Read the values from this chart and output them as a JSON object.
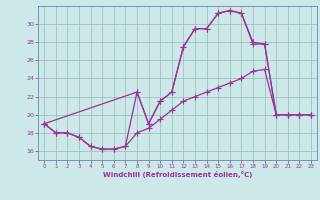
{
  "xlabel": "Windchill (Refroidissement éolien,°C)",
  "bg_color": "#cce8e8",
  "line_color": "#993399",
  "grid_color": "#99bbbb",
  "xmin": -0.5,
  "xmax": 23.5,
  "ymin": 15.0,
  "ymax": 32.0,
  "yticks": [
    16,
    18,
    20,
    22,
    24,
    26,
    28,
    30
  ],
  "line1_x": [
    0,
    1,
    2,
    3,
    4,
    5,
    6,
    7,
    8,
    9,
    10,
    11,
    12,
    13,
    14,
    15,
    16,
    17,
    18,
    19,
    20,
    21,
    22,
    23
  ],
  "line1_y": [
    19,
    18,
    18,
    17.5,
    16.5,
    16.2,
    16.2,
    16.5,
    18.0,
    18.5,
    19.5,
    20.5,
    21.5,
    22.0,
    22.5,
    23.0,
    23.5,
    24.0,
    24.8,
    25.0,
    20.0,
    20.0,
    20.0,
    20.0
  ],
  "line2_x": [
    0,
    1,
    2,
    3,
    4,
    5,
    6,
    7,
    8,
    9,
    10,
    11,
    12,
    13,
    14,
    15,
    16,
    17,
    18,
    19,
    20,
    21,
    22,
    23
  ],
  "line2_y": [
    19,
    18,
    18,
    17.5,
    16.5,
    16.2,
    16.2,
    16.5,
    22.5,
    19.0,
    21.5,
    22.5,
    27.5,
    29.5,
    29.5,
    31.2,
    31.5,
    31.2,
    28.0,
    27.8,
    20.0,
    20.0,
    20.0,
    20.0
  ],
  "line3_x": [
    0,
    8,
    9,
    10,
    11,
    12,
    13,
    14,
    15,
    16,
    17,
    18,
    19,
    20,
    21,
    22,
    23
  ],
  "line3_y": [
    19,
    22.5,
    19.0,
    21.5,
    22.5,
    27.5,
    29.5,
    29.5,
    31.2,
    31.5,
    31.2,
    27.8,
    27.8,
    20.0,
    20.0,
    20.0,
    20.0
  ]
}
